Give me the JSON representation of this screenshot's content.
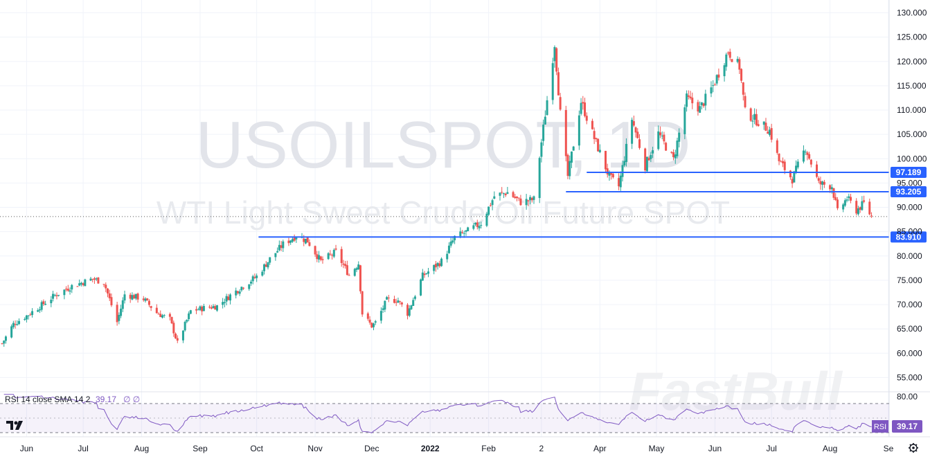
{
  "watermark": {
    "symbol": "USOILSPOT, 1D",
    "description": "WTI Light Sweet Crude Oil Future SPOT",
    "brand": "FastBull"
  },
  "rsi": {
    "legend": "RSI 14 close SMA 14 2",
    "value": "39.17",
    "extra": "∅ ∅",
    "tag_label": "RSI",
    "tag_value": "39.17",
    "ticks": [
      "80.00"
    ]
  },
  "colors": {
    "up": "#26a69a",
    "down": "#ef5350",
    "level": "#2962ff",
    "rsi": "#7e57c2"
  },
  "icons": [
    "tradingview-logo-icon",
    "gear-icon"
  ],
  "chart_data": {
    "type": "candlestick",
    "y_ticks": [
      "55.000",
      "60.000",
      "65.000",
      "70.000",
      "75.000",
      "80.000",
      "85.000",
      "90.000",
      "95.000",
      "100.000",
      "105.000",
      "110.000",
      "115.000",
      "120.000",
      "125.000",
      "130.000"
    ],
    "ylim": [
      52.5,
      131.5
    ],
    "x_ticks": [
      {
        "label": "Jun",
        "date": "2021-06-01"
      },
      {
        "label": "Jul",
        "date": "2021-07-01"
      },
      {
        "label": "Aug",
        "date": "2021-08-01"
      },
      {
        "label": "Sep",
        "date": "2021-09-01"
      },
      {
        "label": "Oct",
        "date": "2021-10-01"
      },
      {
        "label": "Nov",
        "date": "2021-11-01"
      },
      {
        "label": "Dec",
        "date": "2021-12-01"
      },
      {
        "label": "2022",
        "date": "2022-01-01",
        "bold": true
      },
      {
        "label": "Feb",
        "date": "2022-02-01"
      },
      {
        "label": "2",
        "date": "2022-03-01"
      },
      {
        "label": "Apr",
        "date": "2022-04-01"
      },
      {
        "label": "May",
        "date": "2022-05-01"
      },
      {
        "label": "Jun",
        "date": "2022-06-01"
      },
      {
        "label": "Jul",
        "date": "2022-07-01"
      },
      {
        "label": "Aug",
        "date": "2022-08-01"
      },
      {
        "label": "Se",
        "date": "2022-09-01"
      }
    ],
    "xlim": [
      "2021-05-19",
      "2022-09-01"
    ],
    "levels": [
      {
        "value": 97.189,
        "label": "97.189",
        "from": "2022-03-25"
      },
      {
        "value": 93.205,
        "label": "93.205",
        "from": "2022-03-14"
      },
      {
        "value": 83.91,
        "label": "83.910",
        "from": "2021-10-02"
      }
    ],
    "last_close": 88.1,
    "closes": [
      [
        "2021-05-19",
        62.0
      ],
      [
        "2021-05-25",
        66.0
      ],
      [
        "2021-06-01",
        67.7
      ],
      [
        "2021-06-09",
        69.9
      ],
      [
        "2021-06-16",
        71.9
      ],
      [
        "2021-06-25",
        73.8
      ],
      [
        "2021-07-06",
        75.3
      ],
      [
        "2021-07-12",
        74.6
      ],
      [
        "2021-07-19",
        66.4
      ],
      [
        "2021-07-23",
        72.1
      ],
      [
        "2021-08-02",
        71.2
      ],
      [
        "2021-08-09",
        68.3
      ],
      [
        "2021-08-16",
        67.0
      ],
      [
        "2021-08-20",
        62.1
      ],
      [
        "2021-08-27",
        68.7
      ],
      [
        "2021-09-03",
        69.3
      ],
      [
        "2021-09-10",
        69.7
      ],
      [
        "2021-09-17",
        71.9
      ],
      [
        "2021-09-24",
        73.9
      ],
      [
        "2021-10-01",
        75.8
      ],
      [
        "2021-10-08",
        79.4
      ],
      [
        "2021-10-15",
        82.4
      ],
      [
        "2021-10-22",
        84.2
      ],
      [
        "2021-10-28",
        83.1
      ],
      [
        "2021-11-04",
        78.9
      ],
      [
        "2021-11-12",
        80.8
      ],
      [
        "2021-11-19",
        76.1
      ],
      [
        "2021-11-24",
        78.5
      ],
      [
        "2021-11-26",
        68.2
      ],
      [
        "2021-12-01",
        65.6
      ],
      [
        "2021-12-03",
        66.3
      ],
      [
        "2021-12-09",
        70.9
      ],
      [
        "2021-12-15",
        70.9
      ],
      [
        "2021-12-20",
        68.2
      ],
      [
        "2021-12-28",
        75.9
      ],
      [
        "2022-01-07",
        78.9
      ],
      [
        "2022-01-14",
        83.8
      ],
      [
        "2022-01-21",
        85.1
      ],
      [
        "2022-01-28",
        86.8
      ],
      [
        "2022-02-04",
        92.3
      ],
      [
        "2022-02-11",
        93.1
      ],
      [
        "2022-02-18",
        91.1
      ],
      [
        "2022-02-25",
        91.6
      ],
      [
        "2022-03-01",
        103.4
      ],
      [
        "2022-03-08",
        123.7
      ],
      [
        "2022-03-11",
        109.3
      ],
      [
        "2022-03-15",
        96.4
      ],
      [
        "2022-03-22",
        111.8
      ],
      [
        "2022-03-29",
        104.2
      ],
      [
        "2022-04-06",
        96.2
      ],
      [
        "2022-04-11",
        94.3
      ],
      [
        "2022-04-18",
        108.2
      ],
      [
        "2022-04-25",
        98.5
      ],
      [
        "2022-05-02",
        105.2
      ],
      [
        "2022-05-10",
        99.8
      ],
      [
        "2022-05-17",
        112.4
      ],
      [
        "2022-05-24",
        110.3
      ],
      [
        "2022-05-31",
        115.0
      ],
      [
        "2022-06-08",
        122.1
      ],
      [
        "2022-06-14",
        118.9
      ],
      [
        "2022-06-17",
        109.6
      ],
      [
        "2022-06-24",
        107.6
      ],
      [
        "2022-06-30",
        105.8
      ],
      [
        "2022-07-05",
        99.5
      ],
      [
        "2022-07-12",
        95.8
      ],
      [
        "2022-07-19",
        102.3
      ],
      [
        "2022-07-26",
        94.9
      ],
      [
        "2022-08-02",
        94.4
      ],
      [
        "2022-08-05",
        89.0
      ],
      [
        "2022-08-10",
        91.9
      ],
      [
        "2022-08-15",
        89.4
      ],
      [
        "2022-08-19",
        90.8
      ],
      [
        "2022-08-23",
        88.1
      ]
    ]
  }
}
